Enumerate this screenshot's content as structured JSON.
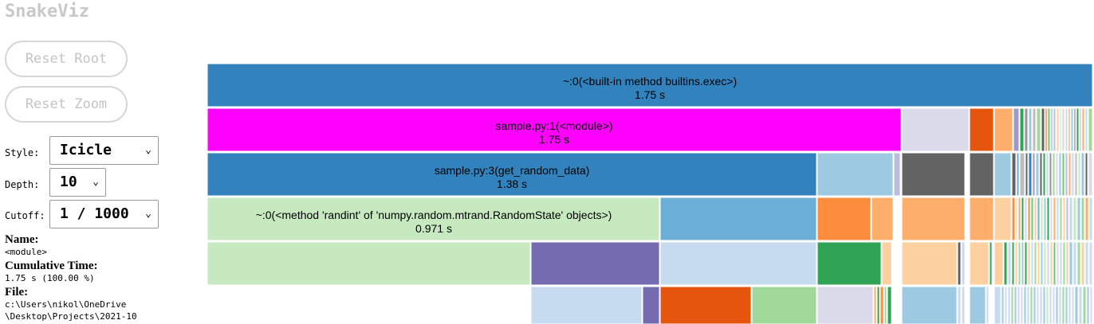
{
  "app": {
    "title": "SnakeViz"
  },
  "buttons": {
    "reset_root": "Reset Root",
    "reset_zoom": "Reset Zoom"
  },
  "controls": {
    "style_label": "Style:",
    "style_value": "Icicle",
    "depth_label": "Depth:",
    "depth_value": "10",
    "cutoff_label": "Cutoff:",
    "cutoff_value": "1 / 1000"
  },
  "info": {
    "name_label": "Name:",
    "name_value": "<module>",
    "cumtime_label": "Cumulative Time:",
    "cumtime_value": "1.75 s (100.00 %)",
    "file_label": "File:",
    "file_value_line1": "c:\\Users\\nikol\\OneDrive",
    "file_value_line2": "\\Desktop\\Projects\\2021-10"
  },
  "chart_data": {
    "type": "icicle",
    "total_seconds": 1.75,
    "nodes": [
      {
        "depth": 0,
        "name": "~:0(<built-in method builtins.exec>)",
        "time": "1.75 s",
        "time_s": 1.75,
        "color": "#3182bd"
      },
      {
        "depth": 1,
        "name": "sample.py:1(<module>)",
        "time": "1.75 s",
        "time_s": 1.75,
        "color": "#ff00ff"
      },
      {
        "depth": 2,
        "name": "sample.py:3(get_random_data)",
        "time": "1.38 s",
        "time_s": 1.38,
        "color": "#3182bd"
      },
      {
        "depth": 3,
        "name": "~:0(<method 'randint' of 'numpy.random.mtrand.RandomState' objects>)",
        "time": "0.971 s",
        "time_s": 0.971,
        "color": "#c7e9c0"
      }
    ],
    "palette": [
      "#3182bd",
      "#6baed6",
      "#9ecae1",
      "#c6dbef",
      "#e6550d",
      "#fd8d3c",
      "#fdae6b",
      "#fdd0a2",
      "#31a354",
      "#74c476",
      "#a1d99b",
      "#c7e9c0",
      "#756bb1",
      "#9e9ac8",
      "#bcbddc",
      "#dadaeb",
      "#636363",
      "#969696",
      "#bdbdbd",
      "#d9d9d9"
    ]
  }
}
